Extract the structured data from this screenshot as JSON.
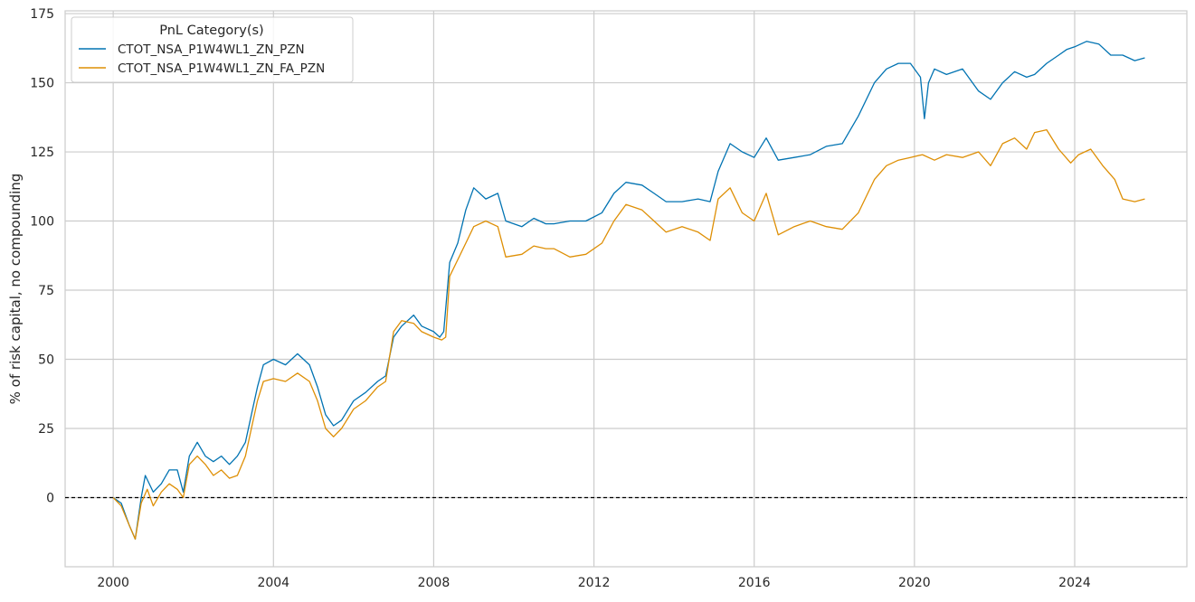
{
  "chart_data": {
    "type": "line",
    "title": "",
    "xlabel": "",
    "ylabel": "% of risk capital, no compounding",
    "xlim": [
      1998.8,
      2026.8
    ],
    "ylim": [
      -25,
      176
    ],
    "x_ticks": [
      2000,
      2004,
      2008,
      2012,
      2016,
      2020,
      2024
    ],
    "x_tick_labels": [
      "2000",
      "2004",
      "2008",
      "2012",
      "2016",
      "2020",
      "2024"
    ],
    "y_ticks": [
      0,
      25,
      50,
      75,
      100,
      125,
      150,
      175
    ],
    "y_tick_labels": [
      "0",
      "25",
      "50",
      "75",
      "100",
      "125",
      "150",
      "175"
    ],
    "grid": true,
    "reference_line": {
      "y": 0,
      "style": "dashed",
      "color": "#000000"
    },
    "legend": {
      "title": "PnL Category(s)",
      "placement": "top-left"
    },
    "series": [
      {
        "name": "CTOT_NSA_P1W4WL1_ZN_PZN",
        "color": "#0173b2",
        "points": [
          [
            2000.0,
            0
          ],
          [
            2000.2,
            -2
          ],
          [
            2000.4,
            -10
          ],
          [
            2000.55,
            -15
          ],
          [
            2000.7,
            0
          ],
          [
            2000.8,
            8
          ],
          [
            2001.0,
            2
          ],
          [
            2001.2,
            5
          ],
          [
            2001.4,
            10
          ],
          [
            2001.6,
            10
          ],
          [
            2001.75,
            2
          ],
          [
            2001.9,
            15
          ],
          [
            2002.1,
            20
          ],
          [
            2002.3,
            15
          ],
          [
            2002.5,
            13
          ],
          [
            2002.7,
            15
          ],
          [
            2002.9,
            12
          ],
          [
            2003.1,
            15
          ],
          [
            2003.3,
            20
          ],
          [
            2003.45,
            30
          ],
          [
            2003.6,
            40
          ],
          [
            2003.75,
            48
          ],
          [
            2004.0,
            50
          ],
          [
            2004.3,
            48
          ],
          [
            2004.6,
            52
          ],
          [
            2004.9,
            48
          ],
          [
            2005.1,
            40
          ],
          [
            2005.3,
            30
          ],
          [
            2005.5,
            26
          ],
          [
            2005.7,
            28
          ],
          [
            2006.0,
            35
          ],
          [
            2006.3,
            38
          ],
          [
            2006.6,
            42
          ],
          [
            2006.8,
            44
          ],
          [
            2007.0,
            58
          ],
          [
            2007.2,
            62
          ],
          [
            2007.5,
            66
          ],
          [
            2007.7,
            62
          ],
          [
            2008.0,
            60
          ],
          [
            2008.15,
            58
          ],
          [
            2008.25,
            60
          ],
          [
            2008.4,
            85
          ],
          [
            2008.6,
            92
          ],
          [
            2008.8,
            104
          ],
          [
            2009.0,
            112
          ],
          [
            2009.3,
            108
          ],
          [
            2009.6,
            110
          ],
          [
            2009.8,
            100
          ],
          [
            2010.2,
            98
          ],
          [
            2010.5,
            101
          ],
          [
            2010.8,
            99
          ],
          [
            2011.0,
            99
          ],
          [
            2011.4,
            100
          ],
          [
            2011.8,
            100
          ],
          [
            2012.2,
            103
          ],
          [
            2012.5,
            110
          ],
          [
            2012.8,
            114
          ],
          [
            2013.2,
            113
          ],
          [
            2013.5,
            110
          ],
          [
            2013.8,
            107
          ],
          [
            2014.2,
            107
          ],
          [
            2014.6,
            108
          ],
          [
            2014.9,
            107
          ],
          [
            2015.1,
            118
          ],
          [
            2015.4,
            128
          ],
          [
            2015.7,
            125
          ],
          [
            2016.0,
            123
          ],
          [
            2016.3,
            130
          ],
          [
            2016.6,
            122
          ],
          [
            2017.0,
            123
          ],
          [
            2017.4,
            124
          ],
          [
            2017.8,
            127
          ],
          [
            2018.2,
            128
          ],
          [
            2018.6,
            138
          ],
          [
            2019.0,
            150
          ],
          [
            2019.3,
            155
          ],
          [
            2019.6,
            157
          ],
          [
            2019.9,
            157
          ],
          [
            2020.15,
            152
          ],
          [
            2020.25,
            137
          ],
          [
            2020.35,
            150
          ],
          [
            2020.5,
            155
          ],
          [
            2020.8,
            153
          ],
          [
            2021.2,
            155
          ],
          [
            2021.6,
            147
          ],
          [
            2021.9,
            144
          ],
          [
            2022.2,
            150
          ],
          [
            2022.5,
            154
          ],
          [
            2022.8,
            152
          ],
          [
            2023.0,
            153
          ],
          [
            2023.3,
            157
          ],
          [
            2023.6,
            160
          ],
          [
            2023.8,
            162
          ],
          [
            2024.0,
            163
          ],
          [
            2024.3,
            165
          ],
          [
            2024.6,
            164
          ],
          [
            2024.9,
            160
          ],
          [
            2025.2,
            160
          ],
          [
            2025.5,
            158
          ],
          [
            2025.75,
            159
          ]
        ]
      },
      {
        "name": "CTOT_NSA_P1W4WL1_ZN_FA_PZN",
        "color": "#de8f05",
        "points": [
          [
            2000.0,
            0
          ],
          [
            2000.2,
            -3
          ],
          [
            2000.4,
            -10
          ],
          [
            2000.55,
            -15
          ],
          [
            2000.7,
            -2
          ],
          [
            2000.85,
            3
          ],
          [
            2001.0,
            -3
          ],
          [
            2001.2,
            2
          ],
          [
            2001.4,
            5
          ],
          [
            2001.6,
            3
          ],
          [
            2001.75,
            0
          ],
          [
            2001.9,
            12
          ],
          [
            2002.1,
            15
          ],
          [
            2002.3,
            12
          ],
          [
            2002.5,
            8
          ],
          [
            2002.7,
            10
          ],
          [
            2002.9,
            7
          ],
          [
            2003.1,
            8
          ],
          [
            2003.3,
            15
          ],
          [
            2003.45,
            25
          ],
          [
            2003.6,
            35
          ],
          [
            2003.75,
            42
          ],
          [
            2004.0,
            43
          ],
          [
            2004.3,
            42
          ],
          [
            2004.6,
            45
          ],
          [
            2004.9,
            42
          ],
          [
            2005.1,
            35
          ],
          [
            2005.3,
            25
          ],
          [
            2005.5,
            22
          ],
          [
            2005.7,
            25
          ],
          [
            2006.0,
            32
          ],
          [
            2006.3,
            35
          ],
          [
            2006.6,
            40
          ],
          [
            2006.8,
            42
          ],
          [
            2007.0,
            60
          ],
          [
            2007.2,
            64
          ],
          [
            2007.5,
            63
          ],
          [
            2007.7,
            60
          ],
          [
            2008.0,
            58
          ],
          [
            2008.2,
            57
          ],
          [
            2008.3,
            58
          ],
          [
            2008.4,
            80
          ],
          [
            2008.6,
            86
          ],
          [
            2008.8,
            92
          ],
          [
            2009.0,
            98
          ],
          [
            2009.3,
            100
          ],
          [
            2009.6,
            98
          ],
          [
            2009.8,
            87
          ],
          [
            2010.2,
            88
          ],
          [
            2010.5,
            91
          ],
          [
            2010.8,
            90
          ],
          [
            2011.0,
            90
          ],
          [
            2011.4,
            87
          ],
          [
            2011.8,
            88
          ],
          [
            2012.2,
            92
          ],
          [
            2012.5,
            100
          ],
          [
            2012.8,
            106
          ],
          [
            2013.2,
            104
          ],
          [
            2013.5,
            100
          ],
          [
            2013.8,
            96
          ],
          [
            2014.2,
            98
          ],
          [
            2014.6,
            96
          ],
          [
            2014.9,
            93
          ],
          [
            2015.1,
            108
          ],
          [
            2015.4,
            112
          ],
          [
            2015.7,
            103
          ],
          [
            2016.0,
            100
          ],
          [
            2016.3,
            110
          ],
          [
            2016.6,
            95
          ],
          [
            2017.0,
            98
          ],
          [
            2017.4,
            100
          ],
          [
            2017.8,
            98
          ],
          [
            2018.2,
            97
          ],
          [
            2018.6,
            103
          ],
          [
            2019.0,
            115
          ],
          [
            2019.3,
            120
          ],
          [
            2019.6,
            122
          ],
          [
            2019.9,
            123
          ],
          [
            2020.2,
            124
          ],
          [
            2020.5,
            122
          ],
          [
            2020.8,
            124
          ],
          [
            2021.2,
            123
          ],
          [
            2021.6,
            125
          ],
          [
            2021.9,
            120
          ],
          [
            2022.2,
            128
          ],
          [
            2022.5,
            130
          ],
          [
            2022.8,
            126
          ],
          [
            2023.0,
            132
          ],
          [
            2023.3,
            133
          ],
          [
            2023.6,
            126
          ],
          [
            2023.9,
            121
          ],
          [
            2024.1,
            124
          ],
          [
            2024.4,
            126
          ],
          [
            2024.7,
            120
          ],
          [
            2025.0,
            115
          ],
          [
            2025.2,
            108
          ],
          [
            2025.5,
            107
          ],
          [
            2025.75,
            108
          ]
        ]
      }
    ]
  }
}
